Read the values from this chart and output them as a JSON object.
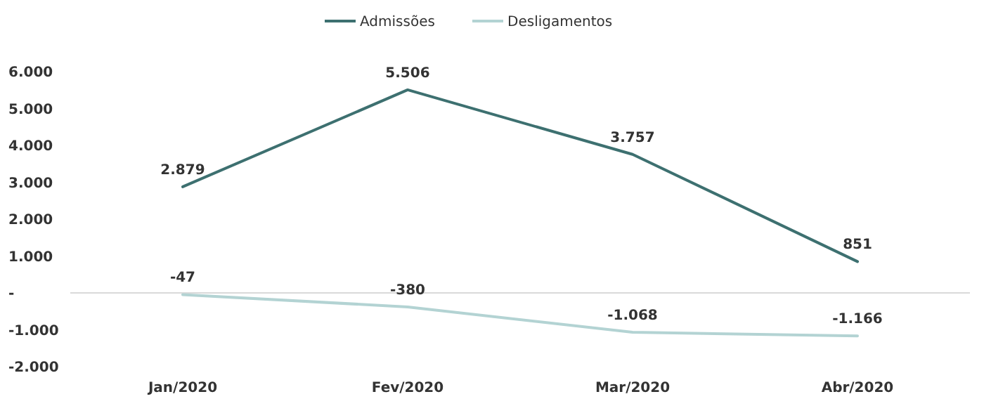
{
  "chart_data": {
    "type": "line",
    "categories": [
      "Jan/2020",
      "Fev/2020",
      "Mar/2020",
      "Abr/2020"
    ],
    "series": [
      {
        "name": "Admissões",
        "color": "#3d7070",
        "values": [
          2879,
          5506,
          3757,
          851
        ],
        "value_labels": [
          "2.879",
          "5.506",
          "3.757",
          "851"
        ]
      },
      {
        "name": "Desligamentos",
        "color": "#b3d3d3",
        "values": [
          -47,
          -380,
          -1068,
          -1166
        ],
        "value_labels": [
          "-47",
          "-380",
          "-1.068",
          "-1.166"
        ]
      }
    ],
    "ylim": [
      -2000,
      6000
    ],
    "yticks": [
      {
        "value": -2000,
        "label": "-2.000"
      },
      {
        "value": -1000,
        "label": "-1.000"
      },
      {
        "value": 0,
        "label": "-"
      },
      {
        "value": 1000,
        "label": "1.000"
      },
      {
        "value": 2000,
        "label": "2.000"
      },
      {
        "value": 3000,
        "label": "3.000"
      },
      {
        "value": 4000,
        "label": "4.000"
      },
      {
        "value": 5000,
        "label": "5.000"
      },
      {
        "value": 6000,
        "label": "6.000"
      }
    ],
    "ref_lines": [
      {
        "axis": "y",
        "value": 0,
        "color": "#d9d9d9"
      }
    ],
    "legend": "top",
    "grid": false,
    "marker": "none",
    "line_style": "solid"
  }
}
